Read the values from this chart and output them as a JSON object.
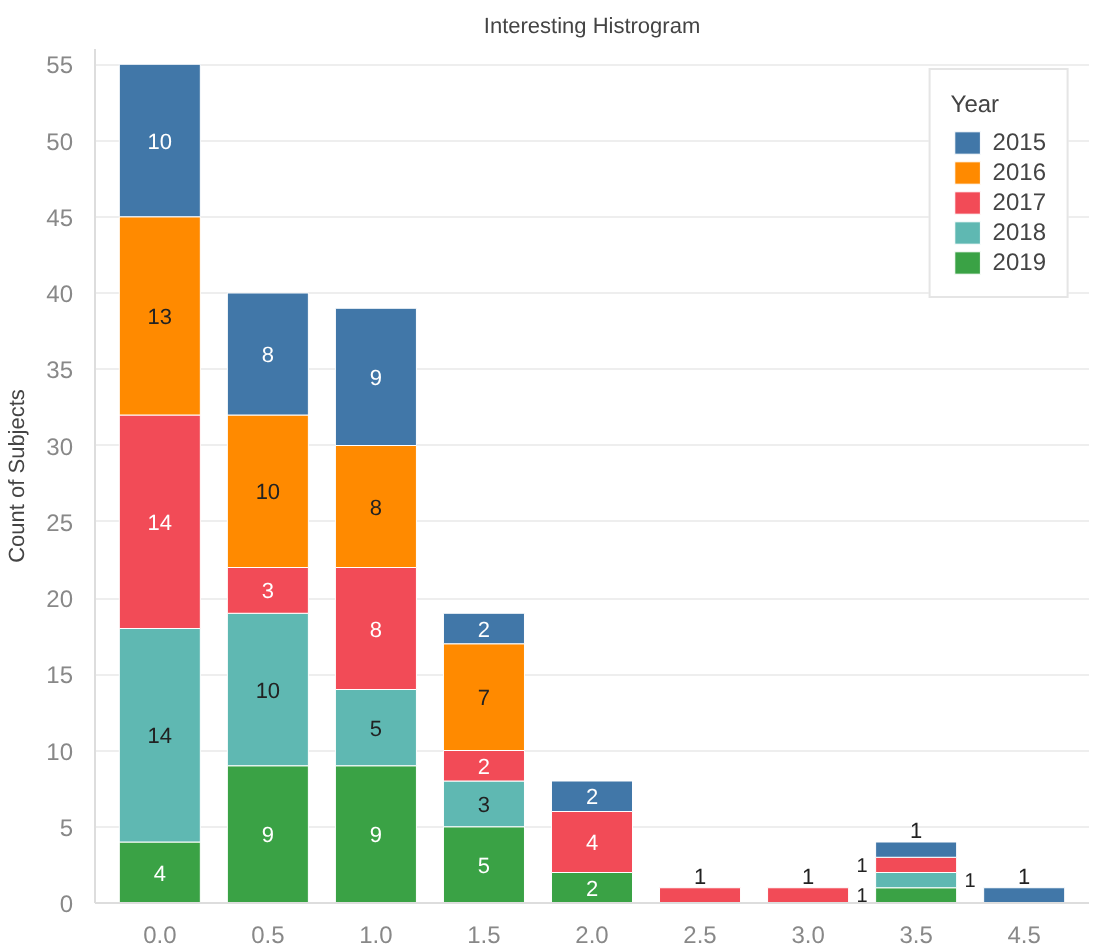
{
  "chart_data": {
    "type": "bar",
    "stacked": true,
    "title": "Interesting Histrogram",
    "ylabel": "Count of Subjects",
    "legend_title": "Year",
    "categories": [
      "0.0",
      "0.5",
      "1.0",
      "1.5",
      "2.0",
      "2.5",
      "3.0",
      "3.5",
      "4.5"
    ],
    "series": [
      {
        "name": "2019",
        "color": "#3aa245",
        "values": [
          4,
          9,
          9,
          5,
          2,
          null,
          null,
          1,
          null
        ]
      },
      {
        "name": "2018",
        "color": "#5fb8b2",
        "values": [
          14,
          10,
          5,
          3,
          null,
          null,
          null,
          1,
          null
        ]
      },
      {
        "name": "2017",
        "color": "#f24b57",
        "values": [
          14,
          3,
          8,
          2,
          4,
          1,
          1,
          1,
          null
        ]
      },
      {
        "name": "2016",
        "color": "#ff8a00",
        "values": [
          13,
          10,
          8,
          7,
          null,
          null,
          null,
          null,
          null
        ]
      },
      {
        "name": "2015",
        "color": "#4177a8",
        "values": [
          10,
          8,
          9,
          2,
          2,
          null,
          null,
          1,
          1
        ]
      }
    ],
    "ylim": [
      0,
      56
    ],
    "yticks": [
      0,
      5,
      10,
      15,
      20,
      25,
      30,
      35,
      40,
      45,
      50,
      55
    ],
    "grid": "y",
    "legend": "top right",
    "data_labels": true
  }
}
